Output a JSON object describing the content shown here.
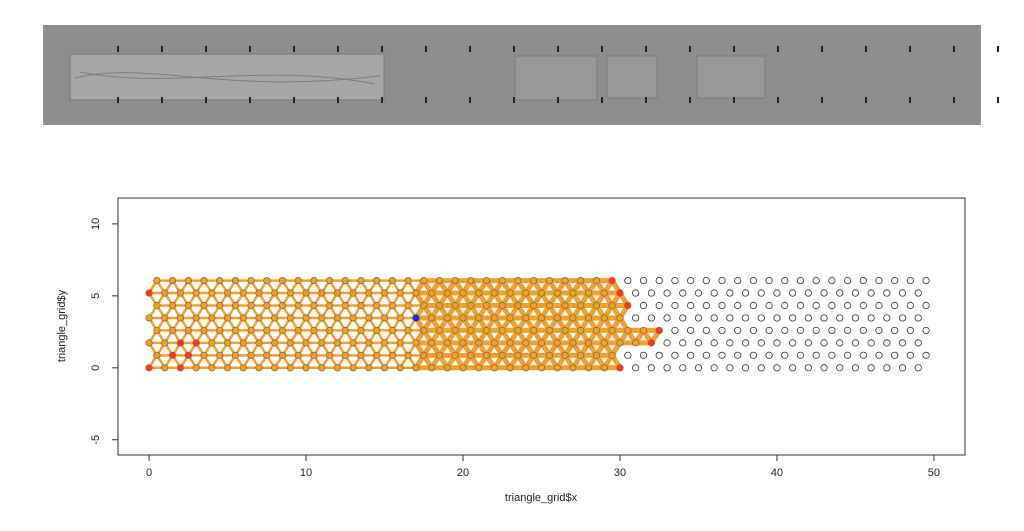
{
  "chart_data": {
    "type": "scatter",
    "x_label": "triangle_grid$x",
    "y_label": "triangle_grid$y",
    "xlim": [
      -1.98,
      51.98
    ],
    "ylim": [
      -6.06,
      11.8
    ],
    "xticks": [
      0,
      10,
      20,
      30,
      40,
      50
    ],
    "yticks": [
      -5,
      0,
      5,
      10
    ],
    "series": [
      {
        "color": "#f0a030",
        "stroke": "#8a6a2a",
        "y": 0,
        "x": [
          1,
          3,
          4,
          5,
          6,
          7,
          8,
          9,
          10,
          11,
          12,
          13,
          14,
          15,
          16,
          17,
          18,
          19,
          20,
          21,
          22,
          23,
          24,
          25,
          26,
          27,
          28,
          29
        ]
      },
      {
        "color": "#f0a030",
        "stroke": "#8a6a2a",
        "y": 0.866,
        "x": [
          0.5,
          3.5,
          4.5,
          5.5,
          6.5,
          7.5,
          8.5,
          9.5,
          10.5,
          11.5,
          12.5,
          13.5,
          14.5,
          15.5,
          16.5,
          17.5,
          18.5,
          19.5,
          20.5,
          21.5,
          22.5,
          23.5,
          24.5,
          25.5,
          26.5,
          27.5,
          28.5,
          29.5
        ]
      },
      {
        "color": "#f0a030",
        "stroke": "#8a6a2a",
        "y": 1.732,
        "x": [
          0,
          1,
          4,
          5,
          6,
          7,
          8,
          9,
          10,
          11,
          12,
          13,
          14,
          15,
          16,
          17,
          18,
          19,
          20,
          21,
          22,
          23,
          24,
          25,
          26,
          27,
          28,
          29,
          30,
          31
        ]
      },
      {
        "color": "#f0a030",
        "stroke": "#8a6a2a",
        "y": 2.598,
        "x": [
          0.5,
          1.5,
          2.5,
          3.5,
          4.5,
          5.5,
          6.5,
          7.5,
          8.5,
          9.5,
          10.5,
          11.5,
          12.5,
          13.5,
          14.5,
          15.5,
          16.5,
          17.5,
          18.5,
          19.5,
          20.5,
          21.5,
          22.5,
          23.5,
          24.5,
          25.5,
          26.5,
          27.5,
          28.5,
          29.5,
          30.5,
          31.5
        ]
      },
      {
        "color": "#f0a030",
        "stroke": "#8a6a2a",
        "y": 3.464,
        "x": [
          0,
          1,
          2,
          3,
          4,
          5,
          6,
          7,
          8,
          9,
          10,
          11,
          12,
          13,
          14,
          15,
          16,
          18,
          19,
          20,
          21,
          22,
          23,
          24,
          25,
          26,
          27,
          28,
          29,
          30
        ]
      },
      {
        "color": "#f0a030",
        "stroke": "#8a6a2a",
        "y": 4.33,
        "x": [
          0.5,
          1.5,
          2.5,
          3.5,
          4.5,
          5.5,
          6.5,
          7.5,
          8.5,
          9.5,
          10.5,
          11.5,
          12.5,
          13.5,
          14.5,
          15.5,
          16.5,
          17.5,
          18.5,
          19.5,
          20.5,
          21.5,
          22.5,
          23.5,
          24.5,
          25.5,
          26.5,
          27.5,
          28.5,
          29.5
        ]
      },
      {
        "color": "#f0a030",
        "stroke": "#8a6a2a",
        "y": 5.196,
        "x": [
          1,
          2,
          3,
          4,
          5,
          6,
          7,
          8,
          9,
          10,
          11,
          12,
          13,
          14,
          15,
          16,
          17,
          18,
          19,
          20,
          21,
          22,
          23,
          24,
          25,
          26,
          27,
          28,
          29
        ]
      },
      {
        "color": "#f0a030",
        "stroke": "#8a6a2a",
        "y": 6.062,
        "x": [
          0.5,
          1.5,
          2.5,
          3.5,
          4.5,
          5.5,
          6.5,
          7.5,
          8.5,
          9.5,
          10.5,
          11.5,
          12.5,
          13.5,
          14.5,
          15.5,
          16.5,
          17.5,
          18.5,
          19.5,
          20.5,
          21.5,
          22.5,
          23.5,
          24.5,
          25.5,
          26.5,
          27.5,
          28.5
        ]
      },
      {
        "color": "#e2402a",
        "stroke": "#e2402a",
        "x": [
          0,
          2,
          30,
          1.5,
          2.5,
          2,
          3,
          32,
          32.5,
          30.5,
          0,
          30,
          29.5
        ],
        "y": [
          0,
          0,
          0,
          0.866,
          0.866,
          1.732,
          1.732,
          1.732,
          2.598,
          4.33,
          5.196,
          5.196,
          6.062
        ]
      },
      {
        "color": "#2030d0",
        "stroke": "#2030d0",
        "x": [
          17
        ],
        "y": [
          3.464
        ]
      },
      {
        "color": "none",
        "stroke": "#333333",
        "y": 0,
        "x": [
          31,
          32,
          33,
          34,
          35,
          36,
          37,
          38,
          39,
          40,
          41,
          42,
          43,
          44,
          45,
          46,
          47,
          48,
          49
        ]
      },
      {
        "color": "none",
        "stroke": "#333333",
        "y": 0.866,
        "x": [
          30.5,
          31.5,
          32.5,
          33.5,
          34.5,
          35.5,
          36.5,
          37.5,
          38.5,
          39.5,
          40.5,
          41.5,
          42.5,
          43.5,
          44.5,
          45.5,
          46.5,
          47.5,
          48.5,
          49.5
        ]
      },
      {
        "color": "none",
        "stroke": "#333333",
        "y": 1.732,
        "x": [
          33,
          34,
          35,
          36,
          37,
          38,
          39,
          40,
          41,
          42,
          43,
          44,
          45,
          46,
          47,
          48,
          49
        ]
      },
      {
        "color": "none",
        "stroke": "#333333",
        "y": 2.598,
        "x": [
          33.5,
          34.5,
          35.5,
          36.5,
          37.5,
          38.5,
          39.5,
          40.5,
          41.5,
          42.5,
          43.5,
          44.5,
          45.5,
          46.5,
          47.5,
          48.5,
          49.5
        ]
      },
      {
        "color": "none",
        "stroke": "#333333",
        "y": 3.464,
        "x": [
          31,
          32,
          33,
          34,
          35,
          36,
          37,
          38,
          39,
          40,
          41,
          42,
          43,
          44,
          45,
          46,
          47,
          48,
          49
        ]
      },
      {
        "color": "none",
        "stroke": "#333333",
        "y": 4.33,
        "x": [
          31.5,
          32.5,
          33.5,
          34.5,
          35.5,
          36.5,
          37.5,
          38.5,
          39.5,
          40.5,
          41.5,
          42.5,
          43.5,
          44.5,
          45.5,
          46.5,
          47.5,
          48.5,
          49.5
        ]
      },
      {
        "color": "none",
        "stroke": "#333333",
        "y": 5.196,
        "x": [
          31,
          32,
          33,
          34,
          35,
          36,
          37,
          38,
          39,
          40,
          41,
          42,
          43,
          44,
          45,
          46,
          47,
          48,
          49
        ]
      },
      {
        "color": "none",
        "stroke": "#333333",
        "y": 6.062,
        "x": [
          30.5,
          31.5,
          32.5,
          33.5,
          34.5,
          35.5,
          36.5,
          37.5,
          38.5,
          39.5,
          40.5,
          41.5,
          42.5,
          43.5,
          44.5,
          45.5,
          46.5,
          47.5,
          48.5,
          49.5
        ]
      }
    ]
  }
}
